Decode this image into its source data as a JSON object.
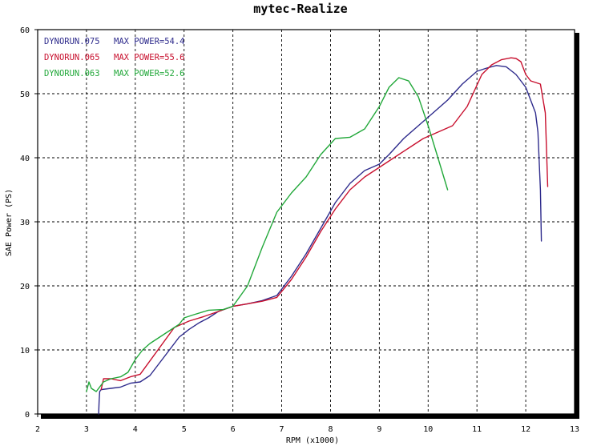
{
  "chart_data": {
    "type": "line",
    "title": "mytec-Realize",
    "xlabel": "RPM (x1000)",
    "ylabel": "SAE Power (PS)",
    "xlim": [
      2,
      13
    ],
    "ylim": [
      0,
      60
    ],
    "xticks": [
      "2",
      "3",
      "4",
      "5",
      "6",
      "7",
      "8",
      "9",
      "10",
      "11",
      "12",
      "13"
    ],
    "yticks": [
      "0",
      "10",
      "20",
      "30",
      "40",
      "50",
      "60"
    ],
    "grid": true,
    "legend_position": "top-left",
    "legend": [
      {
        "run": "DYNORUN.075",
        "max_label": "MAX POWER=54.4",
        "color": "#2e2b8c"
      },
      {
        "run": "DYNORUN.065",
        "max_label": "MAX POWER=55.6",
        "color": "#c8102e"
      },
      {
        "run": "DYNORUN.063",
        "max_label": "MAX POWER=52.6",
        "color": "#22a83a"
      }
    ],
    "series": [
      {
        "name": "DYNORUN.075",
        "color": "#2e2b8c",
        "x": [
          3.25,
          3.26,
          3.27,
          3.3,
          3.5,
          3.7,
          3.9,
          4.1,
          4.3,
          4.6,
          4.9,
          5.1,
          5.3,
          5.5,
          5.7,
          6.0,
          6.3,
          6.6,
          6.9,
          7.2,
          7.5,
          7.8,
          8.1,
          8.4,
          8.7,
          9.0,
          9.2,
          9.5,
          9.8,
          10.1,
          10.4,
          10.7,
          11.0,
          11.2,
          11.4,
          11.6,
          11.8,
          12.0,
          12.1,
          12.2,
          12.25,
          12.3,
          12.32
        ],
        "y": [
          0,
          2,
          3.5,
          3.8,
          4.0,
          4.2,
          4.8,
          5.0,
          6.0,
          9.0,
          12.0,
          13.2,
          14.2,
          15.0,
          16.0,
          16.8,
          17.2,
          17.7,
          18.5,
          21.5,
          25.0,
          29.0,
          33.0,
          36.0,
          38.0,
          39.0,
          40.5,
          43.0,
          45.0,
          47.0,
          49.0,
          51.5,
          53.5,
          54.0,
          54.4,
          54.2,
          53.0,
          51.0,
          49.0,
          47.0,
          44.0,
          35.0,
          27.0
        ]
      },
      {
        "name": "DYNORUN.065",
        "color": "#c8102e",
        "x": [
          3.3,
          3.35,
          3.5,
          3.7,
          3.9,
          4.1,
          4.8,
          5.1,
          5.4,
          5.7,
          6.0,
          6.3,
          6.6,
          6.9,
          7.2,
          7.5,
          7.8,
          8.1,
          8.4,
          8.7,
          9.0,
          9.3,
          9.6,
          9.9,
          10.2,
          10.5,
          10.8,
          11.1,
          11.3,
          11.5,
          11.7,
          11.8,
          11.9,
          12.0,
          12.1,
          12.3,
          12.4,
          12.45
        ],
        "y": [
          3.8,
          5.5,
          5.5,
          5.2,
          5.8,
          6.2,
          13.5,
          14.5,
          15.2,
          16.0,
          16.8,
          17.2,
          17.6,
          18.2,
          21.0,
          24.5,
          28.5,
          32.0,
          35.0,
          37.0,
          38.5,
          40.0,
          41.5,
          43.0,
          44.0,
          45.0,
          48.0,
          53.0,
          54.5,
          55.3,
          55.6,
          55.5,
          55.0,
          53.0,
          52.0,
          51.5,
          47.0,
          35.5
        ]
      },
      {
        "name": "DYNORUN.063",
        "color": "#22a83a",
        "x": [
          3.0,
          3.05,
          3.1,
          3.2,
          3.35,
          3.5,
          3.7,
          3.85,
          4.0,
          4.15,
          4.3,
          4.4,
          4.9,
          5.0,
          5.2,
          5.5,
          5.8,
          6.0,
          6.3,
          6.6,
          6.9,
          7.2,
          7.5,
          7.8,
          8.1,
          8.4,
          8.7,
          9.0,
          9.2,
          9.4,
          9.6,
          9.8,
          10.0,
          10.2,
          10.4
        ],
        "y": [
          3.5,
          5.0,
          4.0,
          3.5,
          5.0,
          5.5,
          5.8,
          6.5,
          8.5,
          10.0,
          11.0,
          11.5,
          14.0,
          15.0,
          15.5,
          16.2,
          16.3,
          16.8,
          20.0,
          26.0,
          31.5,
          34.5,
          37.0,
          40.5,
          43.0,
          43.2,
          44.5,
          48.0,
          51.0,
          52.5,
          52.0,
          49.5,
          45.0,
          40.0,
          35.0
        ]
      }
    ]
  }
}
